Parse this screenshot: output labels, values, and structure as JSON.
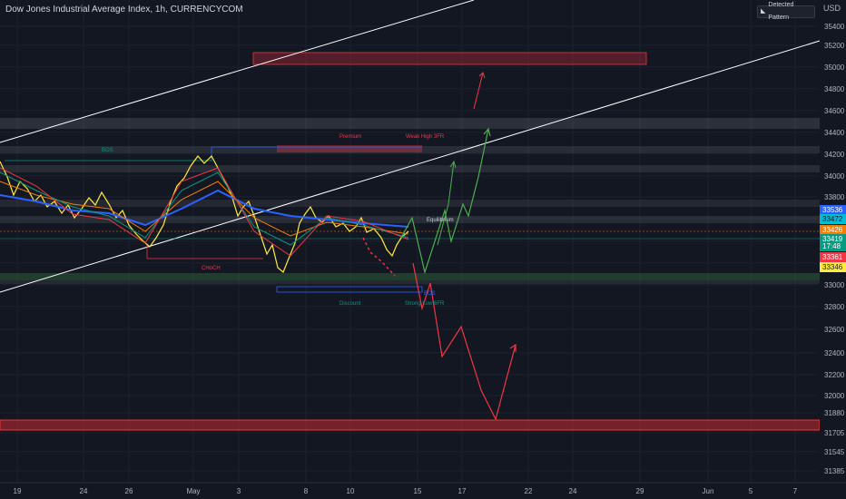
{
  "header": {
    "title": "Dow Jones Industrial Average Index, 1h, CURRENCYCOM",
    "currency": "USD",
    "pattern_button": "Detected Pattern"
  },
  "chart_data": {
    "type": "line",
    "y_ticks": [
      35400,
      35200,
      35000,
      34800,
      34600,
      34400,
      34200,
      34000,
      33800,
      33600,
      33400,
      33200,
      33000,
      32800,
      32600,
      32400,
      32200,
      32000,
      31880,
      31705,
      31545,
      31385
    ],
    "x_ticks": [
      "19",
      "24",
      "26",
      "May",
      "3",
      "8",
      "10",
      "15",
      "17",
      "22",
      "24",
      "29",
      "Jun",
      "5",
      "7"
    ],
    "price_tags": [
      {
        "label": "33536",
        "color": "#2962ff"
      },
      {
        "label": "33472",
        "color": "#00bcd4"
      },
      {
        "label": "33426",
        "color": "#f57c00"
      },
      {
        "label": "33419",
        "color": "#089981"
      },
      {
        "label": "17:48",
        "color": "#089981"
      },
      {
        "label": "33361",
        "color": "#f23645"
      },
      {
        "label": "33346",
        "color": "#ffeb3b"
      }
    ],
    "annotations": [
      "BOS",
      "CHoCH",
      "Premium",
      "Weak High 3FR",
      "Equilibrium",
      "Discount",
      "Strong Low 6FR",
      "BOS"
    ],
    "colors": {
      "background": "#131722",
      "price": "#ffeb3b",
      "ema": "#2962ff",
      "bull_projection": "#4caf50",
      "bear_projection": "#f23645",
      "supply_zone": "#f23645",
      "channel": "#ffffff"
    }
  }
}
